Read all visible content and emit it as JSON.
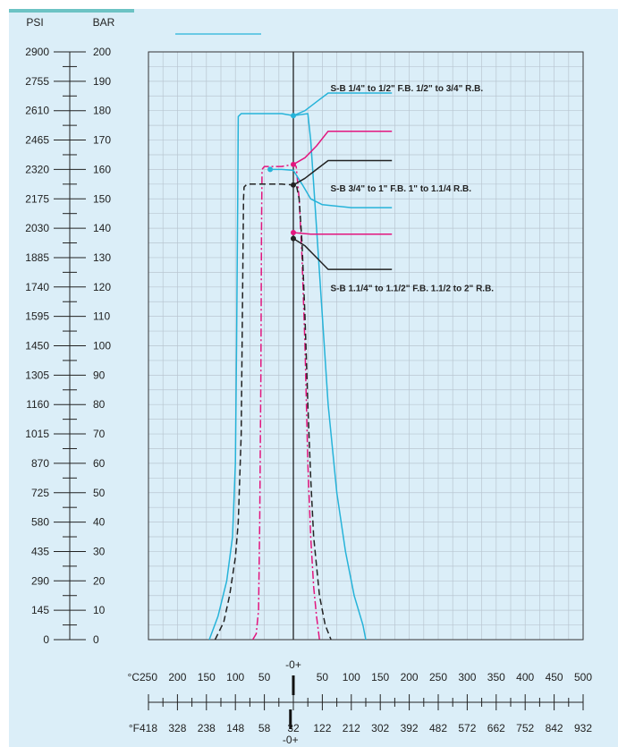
{
  "colors": {
    "blue": "#26b3d9",
    "magenta": "#e3157e",
    "black": "#222222",
    "grid": "#b9c6d1",
    "panel": "#dbeef8"
  },
  "chart_data": {
    "type": "line",
    "title": "",
    "pressure_axis": {
      "psi_label": "PSI",
      "bar_label": "BAR",
      "psi_ticks": [
        "2900",
        "2755",
        "2610",
        "2465",
        "2320",
        "2175",
        "2030",
        "1885",
        "1740",
        "1595",
        "1450",
        "1305",
        "1160",
        "1015",
        "870",
        "725",
        "580",
        "435",
        "290",
        "145",
        "0"
      ],
      "bar_ticks": [
        "200",
        "190",
        "180",
        "170",
        "160",
        "150",
        "140",
        "130",
        "120",
        "110",
        "100",
        "90",
        "80",
        "70",
        "60",
        "50",
        "40",
        "30",
        "20",
        "10",
        "0"
      ],
      "ylim_bar": [
        0,
        200
      ]
    },
    "temperature_axis": {
      "celsius_unit": "°C",
      "fahrenheit_unit": "°F",
      "zero_marker": "-0+",
      "celsius_ticks": [
        "250",
        "200",
        "150",
        "100",
        "50",
        "",
        "50",
        "100",
        "150",
        "200",
        "250",
        "300",
        "350",
        "400",
        "450",
        "500"
      ],
      "fahrenheit_ticks": [
        "418",
        "328",
        "238",
        "148",
        "58",
        "32",
        "122",
        "212",
        "302",
        "392",
        "482",
        "572",
        "662",
        "752",
        "842",
        "932"
      ],
      "xlim_c": [
        -250,
        500
      ]
    },
    "annotations": [
      {
        "text": "S-B 1/4\" to 1/2\" F.B. 1/2\" to 3/4\" R.B.",
        "y_bar": 187.5
      },
      {
        "text": "S-B 3/4\" to 1\" F.B. 1\" to 1.1/4 R.B.",
        "y_bar": 153.5
      },
      {
        "text": "S-B 1.1/4\" to 1.1/2\" F.B. 1.1/2 to 2\" R.B.",
        "y_bar": 119.5
      }
    ],
    "series": [
      {
        "group": 1,
        "color": "blue",
        "style": "solid",
        "points": [
          [
            -145,
            0
          ],
          [
            -130,
            8
          ],
          [
            -115,
            20
          ],
          [
            -105,
            35
          ],
          [
            -100,
            60
          ],
          [
            -98,
            100
          ],
          [
            -96,
            150
          ],
          [
            -95,
            178
          ],
          [
            -90,
            179
          ],
          [
            -70,
            179
          ],
          [
            -50,
            179
          ],
          [
            -20,
            179
          ],
          [
            0,
            178.3
          ],
          [
            25,
            179
          ],
          [
            30,
            170
          ],
          [
            35,
            155
          ],
          [
            45,
            125
          ],
          [
            60,
            80
          ],
          [
            75,
            50
          ],
          [
            90,
            30
          ],
          [
            105,
            15
          ],
          [
            120,
            5
          ],
          [
            125,
            0
          ]
        ]
      },
      {
        "group": 1,
        "color": "magenta",
        "style": "dashdot",
        "points": [
          [
            -70,
            0
          ],
          [
            -64,
            2
          ],
          [
            -60,
            10
          ],
          [
            -58,
            40
          ],
          [
            -56,
            90
          ],
          [
            -55,
            140
          ],
          [
            -54,
            160
          ],
          [
            -50,
            161
          ],
          [
            -20,
            161
          ],
          [
            0,
            161.7
          ],
          [
            5,
            161
          ],
          [
            10,
            150
          ],
          [
            15,
            130
          ],
          [
            20,
            100
          ],
          [
            25,
            60
          ],
          [
            30,
            35
          ],
          [
            35,
            18
          ],
          [
            40,
            8
          ],
          [
            45,
            0
          ]
        ]
      },
      {
        "group": 1,
        "color": "black",
        "style": "dashed",
        "points": [
          [
            -135,
            0
          ],
          [
            -120,
            6
          ],
          [
            -110,
            15
          ],
          [
            -100,
            28
          ],
          [
            -95,
            40
          ],
          [
            -90,
            70
          ],
          [
            -88,
            110
          ],
          [
            -86,
            150
          ],
          [
            -85,
            154
          ],
          [
            -80,
            155
          ],
          [
            -20,
            155
          ],
          [
            0,
            154.7
          ],
          [
            5,
            155
          ],
          [
            10,
            150
          ],
          [
            15,
            135
          ],
          [
            20,
            110
          ],
          [
            25,
            80
          ],
          [
            30,
            55
          ],
          [
            35,
            35
          ],
          [
            45,
            15
          ],
          [
            55,
            5
          ],
          [
            65,
            0
          ]
        ]
      },
      {
        "group": 2,
        "color": "blue",
        "style": "solid",
        "points": [
          [
            -40,
            160
          ],
          [
            -20,
            160
          ],
          [
            0,
            159.7
          ],
          [
            15,
            155
          ],
          [
            30,
            150
          ],
          [
            50,
            148
          ],
          [
            100,
            147
          ],
          [
            120,
            147
          ],
          [
            170,
            147
          ]
        ]
      },
      {
        "group": 2,
        "color": "magenta",
        "style": "solid",
        "points": [
          [
            0,
            138.5
          ],
          [
            30,
            138
          ],
          [
            60,
            138
          ],
          [
            100,
            138
          ],
          [
            170,
            138
          ]
        ]
      },
      {
        "group": 2,
        "color": "black",
        "style": "solid",
        "points": [
          [
            0,
            136.5
          ],
          [
            20,
            134
          ],
          [
            40,
            130
          ],
          [
            60,
            126
          ],
          [
            80,
            126
          ],
          [
            170,
            126
          ]
        ]
      },
      {
        "group": 3,
        "color": "blue",
        "style": "solid",
        "points": [
          [
            0,
            178.3
          ],
          [
            20,
            180
          ],
          [
            40,
            183
          ],
          [
            60,
            186
          ],
          [
            170,
            186
          ]
        ]
      },
      {
        "group": 3,
        "color": "magenta",
        "style": "solid",
        "points": [
          [
            0,
            161.7
          ],
          [
            20,
            164
          ],
          [
            40,
            168
          ],
          [
            60,
            173
          ],
          [
            170,
            173
          ]
        ]
      },
      {
        "group": 3,
        "color": "black",
        "style": "solid",
        "points": [
          [
            0,
            154.7
          ],
          [
            20,
            157
          ],
          [
            40,
            160
          ],
          [
            60,
            163
          ],
          [
            170,
            163
          ]
        ]
      }
    ]
  }
}
